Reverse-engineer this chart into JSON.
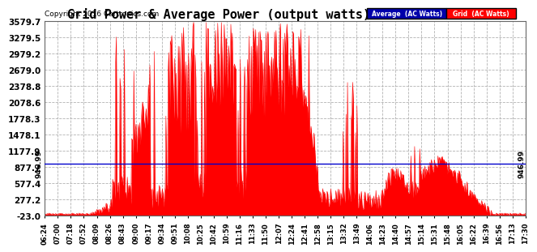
{
  "title": "Grid Power & Average Power (output watts)  Mon Feb 29 17:36",
  "copyright": "Copyright 2016 Cartronics.com",
  "yticks": [
    3579.7,
    3279.5,
    2979.2,
    2679.0,
    2378.8,
    2078.6,
    1778.3,
    1478.1,
    1177.9,
    877.7,
    577.4,
    277.2,
    -23.0
  ],
  "ymin": -23.0,
  "ymax": 3579.7,
  "avg_line_value": 946.99,
  "avg_line_label": "946.99",
  "xtick_labels": [
    "06:24",
    "07:00",
    "07:18",
    "07:52",
    "08:09",
    "08:26",
    "08:43",
    "09:00",
    "09:17",
    "09:34",
    "09:51",
    "10:08",
    "10:25",
    "10:42",
    "10:59",
    "11:16",
    "11:33",
    "11:50",
    "12:07",
    "12:24",
    "12:41",
    "12:58",
    "13:15",
    "13:32",
    "13:49",
    "14:06",
    "14:23",
    "14:40",
    "14:57",
    "15:14",
    "15:31",
    "15:48",
    "16:05",
    "16:22",
    "16:39",
    "16:56",
    "17:13",
    "17:30"
  ],
  "bg_color": "#ffffff",
  "plot_bg_color": "#ffffff",
  "grid_color": "#aaaaaa",
  "area_color": "#ff0000",
  "avg_line_color": "#0000cc",
  "title_fontsize": 11,
  "legend_avg_color": "#0000aa",
  "legend_grid_color": "#ff0000"
}
